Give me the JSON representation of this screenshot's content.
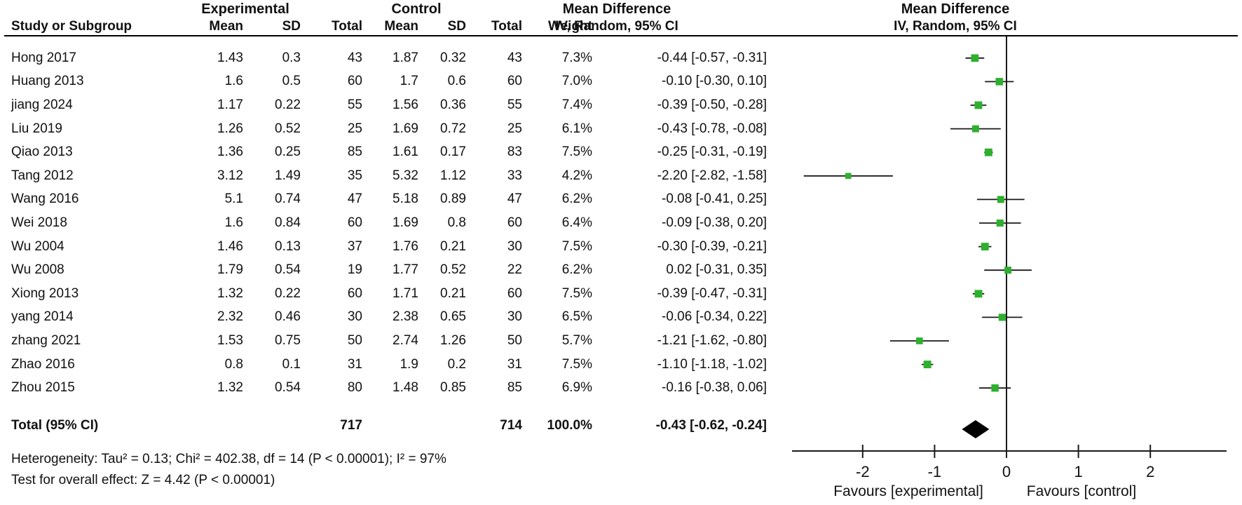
{
  "chart_data": {
    "type": "forest",
    "group_headers": {
      "experimental": "Experimental",
      "control": "Control"
    },
    "effect_header": "Mean Difference",
    "method_header": "IV, Random, 95% CI",
    "plot_effect_header": "Mean Difference",
    "plot_method_header": "IV, Random, 95% CI",
    "columns": [
      "Study or Subgroup",
      "Mean",
      "SD",
      "Total",
      "Mean",
      "SD",
      "Total",
      "Weight",
      "IV, Random, 95% CI"
    ],
    "studies": [
      {
        "study": "Hong 2017",
        "mean_e": "1.43",
        "sd_e": "0.3",
        "total_e": "43",
        "mean_c": "1.87",
        "sd_c": "0.32",
        "total_c": "43",
        "weight": "7.3%",
        "ci_text": "-0.44 [-0.57, -0.31]",
        "est": -0.44,
        "lo": -0.57,
        "hi": -0.31,
        "weight_pct": 7.3
      },
      {
        "study": "Huang 2013",
        "mean_e": "1.6",
        "sd_e": "0.5",
        "total_e": "60",
        "mean_c": "1.7",
        "sd_c": "0.6",
        "total_c": "60",
        "weight": "7.0%",
        "ci_text": "-0.10 [-0.30, 0.10]",
        "est": -0.1,
        "lo": -0.3,
        "hi": 0.1,
        "weight_pct": 7.0
      },
      {
        "study": "jiang 2024",
        "mean_e": "1.17",
        "sd_e": "0.22",
        "total_e": "55",
        "mean_c": "1.56",
        "sd_c": "0.36",
        "total_c": "55",
        "weight": "7.4%",
        "ci_text": "-0.39 [-0.50, -0.28]",
        "est": -0.39,
        "lo": -0.5,
        "hi": -0.28,
        "weight_pct": 7.4
      },
      {
        "study": "Liu 2019",
        "mean_e": "1.26",
        "sd_e": "0.52",
        "total_e": "25",
        "mean_c": "1.69",
        "sd_c": "0.72",
        "total_c": "25",
        "weight": "6.1%",
        "ci_text": "-0.43 [-0.78, -0.08]",
        "est": -0.43,
        "lo": -0.78,
        "hi": -0.08,
        "weight_pct": 6.1
      },
      {
        "study": "Qiao 2013",
        "mean_e": "1.36",
        "sd_e": "0.25",
        "total_e": "85",
        "mean_c": "1.61",
        "sd_c": "0.17",
        "total_c": "83",
        "weight": "7.5%",
        "ci_text": "-0.25 [-0.31, -0.19]",
        "est": -0.25,
        "lo": -0.31,
        "hi": -0.19,
        "weight_pct": 7.5
      },
      {
        "study": "Tang 2012",
        "mean_e": "3.12",
        "sd_e": "1.49",
        "total_e": "35",
        "mean_c": "5.32",
        "sd_c": "1.12",
        "total_c": "33",
        "weight": "4.2%",
        "ci_text": "-2.20 [-2.82, -1.58]",
        "est": -2.2,
        "lo": -2.82,
        "hi": -1.58,
        "weight_pct": 4.2
      },
      {
        "study": "Wang 2016",
        "mean_e": "5.1",
        "sd_e": "0.74",
        "total_e": "47",
        "mean_c": "5.18",
        "sd_c": "0.89",
        "total_c": "47",
        "weight": "6.2%",
        "ci_text": "-0.08 [-0.41, 0.25]",
        "est": -0.08,
        "lo": -0.41,
        "hi": 0.25,
        "weight_pct": 6.2
      },
      {
        "study": "Wei 2018",
        "mean_e": "1.6",
        "sd_e": "0.84",
        "total_e": "60",
        "mean_c": "1.69",
        "sd_c": "0.8",
        "total_c": "60",
        "weight": "6.4%",
        "ci_text": "-0.09 [-0.38, 0.20]",
        "est": -0.09,
        "lo": -0.38,
        "hi": 0.2,
        "weight_pct": 6.4
      },
      {
        "study": "Wu 2004",
        "mean_e": "1.46",
        "sd_e": "0.13",
        "total_e": "37",
        "mean_c": "1.76",
        "sd_c": "0.21",
        "total_c": "30",
        "weight": "7.5%",
        "ci_text": "-0.30 [-0.39, -0.21]",
        "est": -0.3,
        "lo": -0.39,
        "hi": -0.21,
        "weight_pct": 7.5
      },
      {
        "study": "Wu 2008",
        "mean_e": "1.79",
        "sd_e": "0.54",
        "total_e": "19",
        "mean_c": "1.77",
        "sd_c": "0.52",
        "total_c": "22",
        "weight": "6.2%",
        "ci_text": "0.02 [-0.31, 0.35]",
        "est": 0.02,
        "lo": -0.31,
        "hi": 0.35,
        "weight_pct": 6.2
      },
      {
        "study": "Xiong 2013",
        "mean_e": "1.32",
        "sd_e": "0.22",
        "total_e": "60",
        "mean_c": "1.71",
        "sd_c": "0.21",
        "total_c": "60",
        "weight": "7.5%",
        "ci_text": "-0.39 [-0.47, -0.31]",
        "est": -0.39,
        "lo": -0.47,
        "hi": -0.31,
        "weight_pct": 7.5
      },
      {
        "study": "yang 2014",
        "mean_e": "2.32",
        "sd_e": "0.46",
        "total_e": "30",
        "mean_c": "2.38",
        "sd_c": "0.65",
        "total_c": "30",
        "weight": "6.5%",
        "ci_text": "-0.06 [-0.34, 0.22]",
        "est": -0.06,
        "lo": -0.34,
        "hi": 0.22,
        "weight_pct": 6.5
      },
      {
        "study": "zhang 2021",
        "mean_e": "1.53",
        "sd_e": "0.75",
        "total_e": "50",
        "mean_c": "2.74",
        "sd_c": "1.26",
        "total_c": "50",
        "weight": "5.7%",
        "ci_text": "-1.21 [-1.62, -0.80]",
        "est": -1.21,
        "lo": -1.62,
        "hi": -0.8,
        "weight_pct": 5.7
      },
      {
        "study": "Zhao 2016",
        "mean_e": "0.8",
        "sd_e": "0.1",
        "total_e": "31",
        "mean_c": "1.9",
        "sd_c": "0.2",
        "total_c": "31",
        "weight": "7.5%",
        "ci_text": "-1.10 [-1.18, -1.02]",
        "est": -1.1,
        "lo": -1.18,
        "hi": -1.02,
        "weight_pct": 7.5
      },
      {
        "study": "Zhou 2015",
        "mean_e": "1.32",
        "sd_e": "0.54",
        "total_e": "80",
        "mean_c": "1.48",
        "sd_c": "0.85",
        "total_c": "85",
        "weight": "6.9%",
        "ci_text": "-0.16 [-0.38, 0.06]",
        "est": -0.16,
        "lo": -0.38,
        "hi": 0.06,
        "weight_pct": 6.9
      }
    ],
    "total": {
      "label": "Total (95% CI)",
      "total_e": "717",
      "total_c": "714",
      "weight": "100.0%",
      "ci_text": "-0.43 [-0.62, -0.24]",
      "est": -0.43,
      "lo": -0.62,
      "hi": -0.24
    },
    "heterogeneity": "Heterogeneity: Tau² = 0.13; Chi² = 402.38, df = 14 (P < 0.00001); I² = 97%",
    "overall_effect": "Test for overall effect: Z = 4.42 (P < 0.00001)",
    "axis": {
      "ticks": [
        -2,
        -1,
        0,
        1,
        2
      ],
      "favours_left": "Favours [experimental]",
      "favours_right": "Favours [control]"
    },
    "colors": {
      "square": "#2eb02e",
      "diamond": "#000000",
      "line": "#1a1a1a",
      "accent_text": "#111111"
    }
  }
}
